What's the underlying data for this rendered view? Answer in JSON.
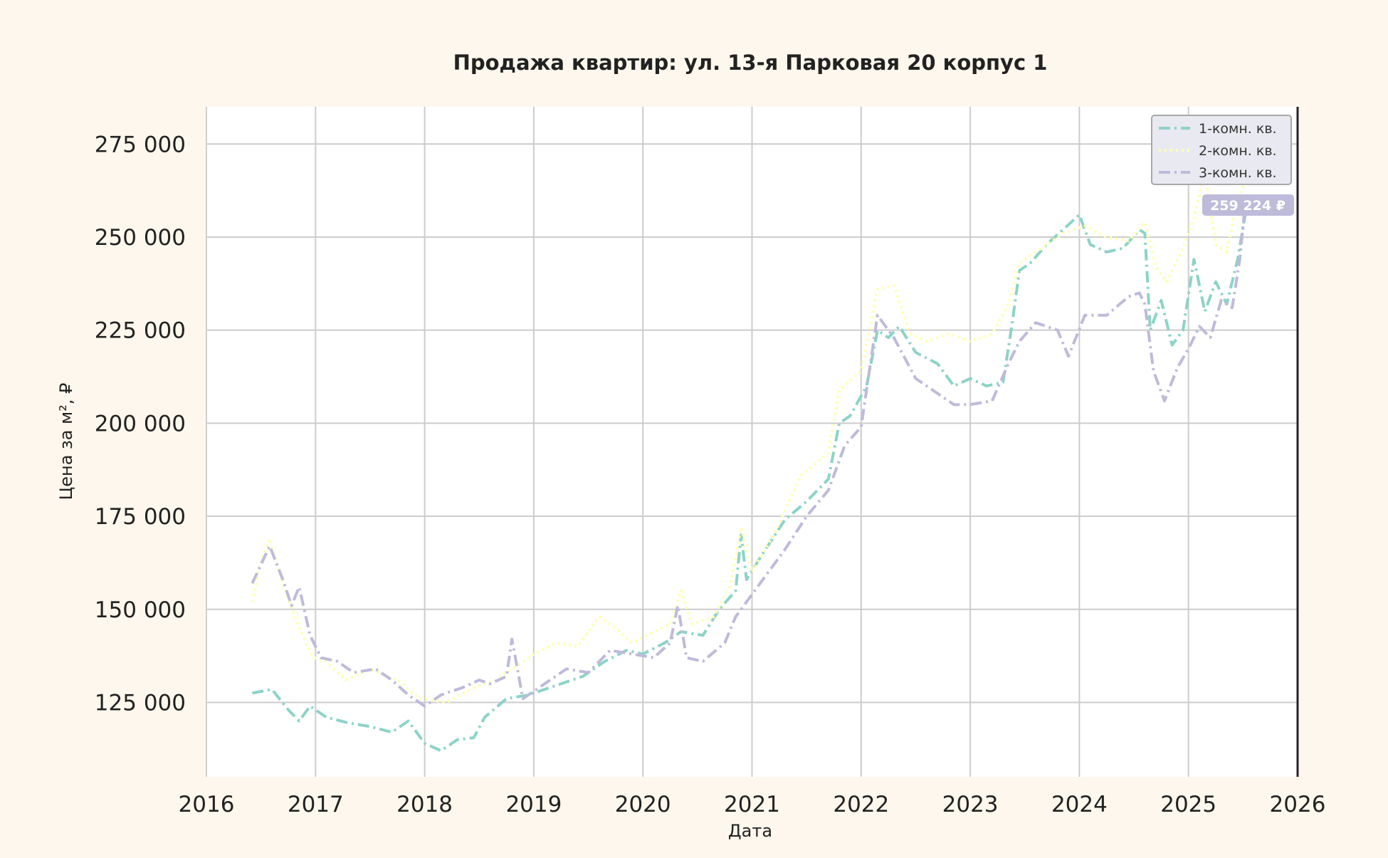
{
  "chart_data": {
    "type": "line",
    "title": "Продажа квартир: ул. 13-я Парковая 20 корпус 1",
    "xlabel": "Дата",
    "ylabel": "Цена за м², ₽",
    "xlim": [
      2016,
      2026
    ],
    "ylim": [
      105000,
      285000
    ],
    "x_ticks": [
      "2016",
      "2017",
      "2018",
      "2019",
      "2020",
      "2021",
      "2022",
      "2023",
      "2024",
      "2025",
      "2026"
    ],
    "y_ticks": [
      125000,
      150000,
      175000,
      200000,
      225000,
      250000,
      275000
    ],
    "y_tick_labels": [
      "125 000",
      "150 000",
      "175 000",
      "200 000",
      "225 000",
      "250 000",
      "275 000"
    ],
    "grid": true,
    "legend_position": "top-right",
    "annotation": "259 224 ₽",
    "series": [
      {
        "name": "1-комн. кв.",
        "color": "#8dd3c7",
        "dash": "dashdot",
        "x": [
          2016.42,
          2016.6,
          2016.75,
          2016.85,
          2016.95,
          2017.1,
          2017.3,
          2017.5,
          2017.7,
          2017.85,
          2018.0,
          2018.15,
          2018.3,
          2018.45,
          2018.55,
          2018.75,
          2018.95,
          2019.2,
          2019.45,
          2019.65,
          2019.85,
          2020.0,
          2020.2,
          2020.35,
          2020.55,
          2020.7,
          2020.85,
          2020.9,
          2020.95,
          2021.1,
          2021.3,
          2021.5,
          2021.7,
          2021.8,
          2021.9,
          2022.05,
          2022.15,
          2022.25,
          2022.35,
          2022.5,
          2022.7,
          2022.85,
          2023.0,
          2023.15,
          2023.3,
          2023.38,
          2023.45,
          2023.55,
          2023.7,
          2023.85,
          2024.0,
          2024.1,
          2024.25,
          2024.4,
          2024.55,
          2024.6,
          2024.65,
          2024.75,
          2024.85,
          2024.95,
          2025.05,
          2025.15,
          2025.25,
          2025.35,
          2025.45,
          2025.52
        ],
        "y": [
          127500,
          128500,
          123000,
          120000,
          124000,
          121000,
          119500,
          118500,
          117000,
          120000,
          114000,
          112000,
          115000,
          115500,
          121000,
          126000,
          127000,
          129500,
          132000,
          136000,
          139000,
          138000,
          141000,
          144000,
          143000,
          150000,
          155000,
          170000,
          158000,
          165000,
          174000,
          179000,
          185000,
          200000,
          202000,
          210000,
          225000,
          223000,
          226000,
          219000,
          216000,
          210000,
          212000,
          210000,
          211000,
          226000,
          241000,
          243000,
          248000,
          252000,
          256000,
          248000,
          246000,
          247000,
          252000,
          251000,
          225000,
          233000,
          221000,
          225000,
          244000,
          230000,
          238000,
          232000,
          244000,
          256000
        ]
      },
      {
        "name": "2-комн. кв.",
        "color": "#ffffb3",
        "dash": "dotted",
        "x": [
          2016.42,
          2016.5,
          2016.58,
          2016.7,
          2016.85,
          2016.98,
          2017.1,
          2017.28,
          2017.5,
          2017.75,
          2017.95,
          2018.2,
          2018.45,
          2018.65,
          2018.8,
          2019.0,
          2019.2,
          2019.4,
          2019.6,
          2019.75,
          2019.9,
          2020.1,
          2020.25,
          2020.35,
          2020.45,
          2020.65,
          2020.8,
          2020.9,
          2021.0,
          2021.2,
          2021.45,
          2021.7,
          2021.8,
          2022.0,
          2022.15,
          2022.3,
          2022.45,
          2022.6,
          2022.8,
          2023.0,
          2023.2,
          2023.35,
          2023.45,
          2023.65,
          2023.85,
          2024.05,
          2024.25,
          2024.45,
          2024.6,
          2024.7,
          2024.8,
          2024.95,
          2025.05,
          2025.15,
          2025.25,
          2025.35,
          2025.45,
          2025.52
        ],
        "y": [
          152000,
          163000,
          169000,
          157000,
          145000,
          137000,
          136000,
          131000,
          134000,
          131000,
          126000,
          125000,
          129000,
          131000,
          134000,
          138000,
          141000,
          140000,
          148000,
          145000,
          141000,
          144000,
          146000,
          155000,
          146000,
          148000,
          156000,
          172000,
          160000,
          170000,
          186000,
          192000,
          209000,
          214000,
          236000,
          237000,
          224000,
          222000,
          224000,
          222000,
          224000,
          232000,
          243000,
          247000,
          251000,
          253000,
          250000,
          249000,
          254000,
          242000,
          238000,
          247000,
          255000,
          268000,
          248000,
          246000,
          260000,
          265000
        ]
      },
      {
        "name": "3-комн. кв.",
        "color": "#bebada",
        "dash": "dashdot",
        "x": [
          2016.42,
          2016.5,
          2016.58,
          2016.7,
          2016.78,
          2016.85,
          2016.95,
          2017.05,
          2017.2,
          2017.35,
          2017.55,
          2017.7,
          2017.85,
          2018.0,
          2018.15,
          2018.35,
          2018.5,
          2018.6,
          2018.75,
          2018.8,
          2018.9,
          2019.1,
          2019.3,
          2019.5,
          2019.7,
          2019.9,
          2020.1,
          2020.25,
          2020.32,
          2020.4,
          2020.55,
          2020.75,
          2020.85,
          2020.95,
          2021.1,
          2021.3,
          2021.5,
          2021.7,
          2021.85,
          2022.0,
          2022.15,
          2022.3,
          2022.5,
          2022.7,
          2022.85,
          2023.0,
          2023.2,
          2023.35,
          2023.45,
          2023.6,
          2023.8,
          2023.9,
          2024.05,
          2024.25,
          2024.45,
          2024.55,
          2024.6,
          2024.68,
          2024.78,
          2024.9,
          2025.0,
          2025.1,
          2025.2,
          2025.3,
          2025.4,
          2025.47,
          2025.52
        ],
        "y": [
          157000,
          162000,
          167000,
          158000,
          151000,
          156000,
          143000,
          137000,
          136000,
          133000,
          134000,
          131000,
          127000,
          124000,
          127000,
          129000,
          131000,
          130000,
          132000,
          142000,
          126000,
          130000,
          134000,
          133000,
          139000,
          138000,
          137000,
          141000,
          151000,
          137000,
          136000,
          141000,
          148000,
          152000,
          158000,
          166000,
          175000,
          182000,
          194000,
          199000,
          229000,
          223000,
          212000,
          208000,
          205000,
          205000,
          206000,
          216000,
          222000,
          227000,
          225000,
          218000,
          229000,
          229000,
          234000,
          235000,
          232000,
          214000,
          206000,
          215000,
          220000,
          226000,
          223000,
          233000,
          231000,
          244000,
          259224
        ]
      }
    ]
  }
}
